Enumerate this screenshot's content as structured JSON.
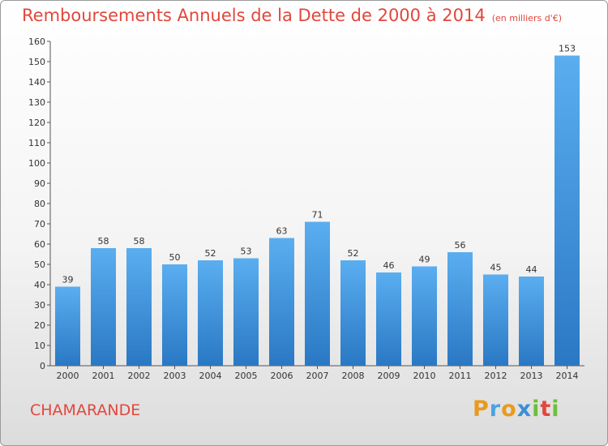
{
  "header": {
    "title": "Remboursements Annuels de la Dette de 2000 à 2014",
    "unit": "(en milliers d'€)"
  },
  "footer": {
    "commune": "CHAMARANDE",
    "logo_text": "Proxiti"
  },
  "colors": {
    "title": "#e2473c",
    "bar_top": "#5aaef0",
    "bar_bottom": "#2a78c4"
  },
  "chart_data": {
    "type": "bar",
    "categories": [
      "2000",
      "2001",
      "2002",
      "2003",
      "2004",
      "2005",
      "2006",
      "2007",
      "2008",
      "2009",
      "2010",
      "2011",
      "2012",
      "2013",
      "2014"
    ],
    "values": [
      39,
      58,
      58,
      50,
      52,
      53,
      63,
      71,
      52,
      46,
      49,
      56,
      45,
      44,
      153
    ],
    "ylim": [
      0,
      160
    ],
    "yticks": [
      0,
      10,
      20,
      30,
      40,
      50,
      60,
      70,
      80,
      90,
      100,
      110,
      120,
      130,
      140,
      150,
      160
    ],
    "grid": false,
    "data_labels": true
  }
}
